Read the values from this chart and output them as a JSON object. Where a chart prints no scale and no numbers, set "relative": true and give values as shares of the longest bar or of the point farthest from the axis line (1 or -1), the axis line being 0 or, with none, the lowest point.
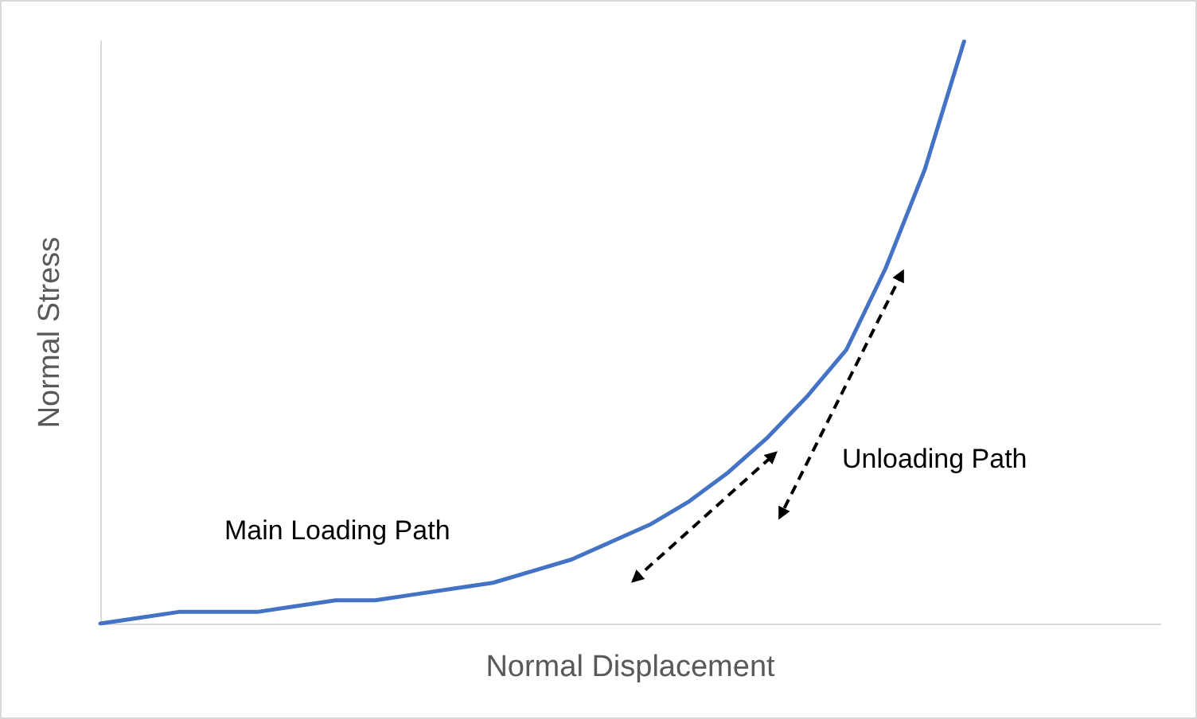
{
  "chart_data": {
    "type": "line",
    "relative": true,
    "xlabel": "Normal Displacement",
    "ylabel": "Normal Stress",
    "categories": [
      null,
      null,
      null,
      null,
      null,
      null,
      null,
      null,
      null,
      null,
      null,
      null,
      null,
      null,
      null,
      null,
      null,
      null,
      null,
      null,
      null,
      null,
      null,
      null,
      null,
      null,
      null,
      null
    ],
    "series": [
      {
        "color": "#4472c4",
        "values": [
          0,
          0.01,
          0.02,
          0.02,
          0.02,
          0.03,
          0.04,
          0.04,
          0.05,
          0.06,
          0.07,
          0.09,
          0.11,
          0.14,
          0.17,
          0.21,
          0.26,
          0.32,
          0.39,
          0.47,
          0.61,
          0.78,
          1,
          null,
          null,
          null,
          null,
          null
        ]
      }
    ],
    "annotations": [
      "Main Loading Path",
      "Unloading Path"
    ],
    "grid": false,
    "marker": "none",
    "line_style": "solid"
  }
}
